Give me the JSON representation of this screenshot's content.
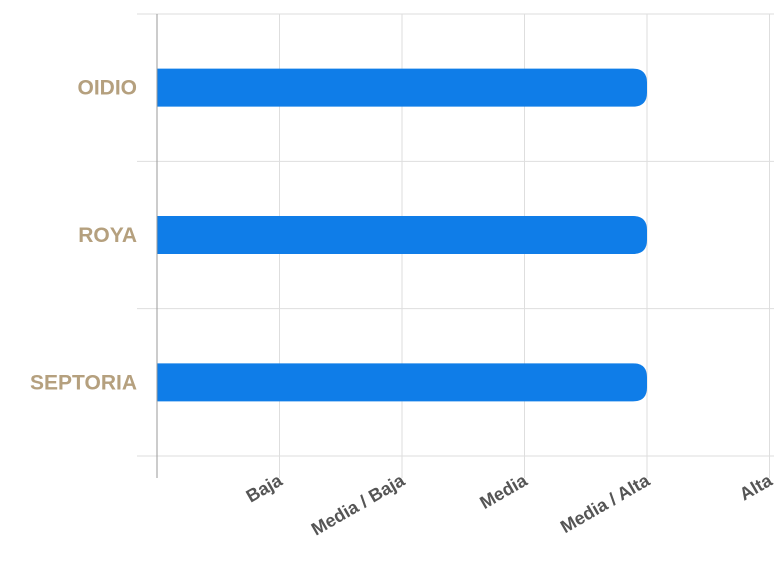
{
  "chart_data": {
    "type": "bar",
    "orientation": "horizontal",
    "categories": [
      "OIDIO",
      "ROYA",
      "SEPTORIA"
    ],
    "values": [
      4,
      4,
      4
    ],
    "xtick_labels": [
      "Baja",
      "Media / Baja",
      "Media",
      "Media / Alta",
      "Alta"
    ],
    "xlim": [
      0,
      5
    ],
    "grid": true,
    "colors": {
      "bar": "#0f7de8",
      "category_label": "#b5a07e",
      "tick_label": "#555555",
      "grid": "#dedede",
      "axis": "#9a9a9a"
    }
  }
}
